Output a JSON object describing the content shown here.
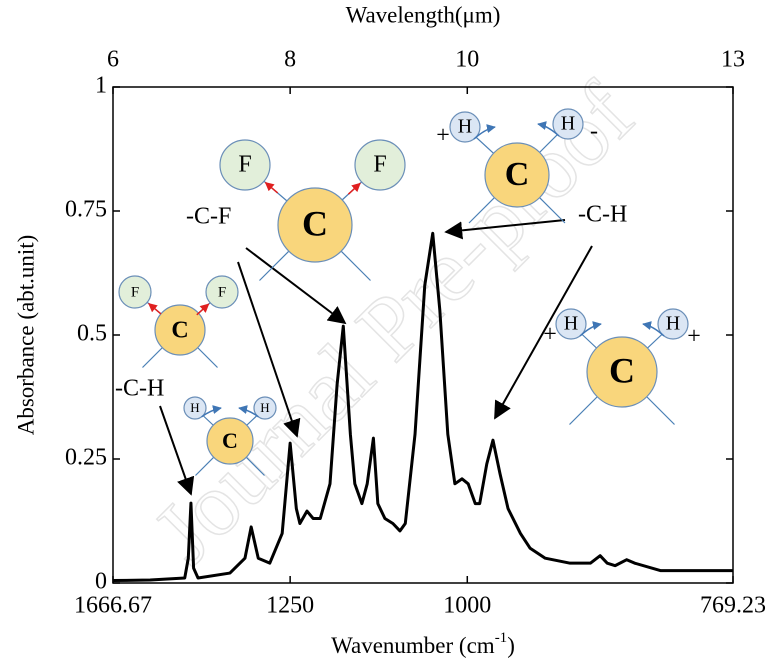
{
  "chart_data": {
    "type": "line",
    "xlabel": "Wavelength(μm)",
    "ylabel": "Absorbance (abt.unit)",
    "x2label": {
      "text": "Wavenumber (cm",
      "sup": "-1",
      "end": ")"
    },
    "xlim": [
      6,
      13
    ],
    "xticks": [
      6,
      8,
      10,
      13
    ],
    "x2lim": [
      1666.67,
      769.23
    ],
    "x2ticks": [
      1666.67,
      1250,
      1000,
      769.23
    ],
    "x2_scale": "reciprocal",
    "ylim": [
      0,
      1
    ],
    "yticks": [
      0,
      0.25,
      0.5,
      0.75,
      1
    ],
    "series": [
      {
        "name": "Absorbance",
        "color": "#000000",
        "x": [
          6.0,
          6.42,
          6.81,
          6.85,
          6.88,
          6.91,
          6.96,
          7.32,
          7.49,
          7.56,
          7.64,
          7.77,
          7.91,
          8.0,
          8.07,
          8.11,
          8.19,
          8.26,
          8.34,
          8.45,
          8.53,
          8.6,
          8.68,
          8.73,
          8.81,
          8.87,
          8.94,
          8.99,
          9.07,
          9.16,
          9.24,
          9.3,
          9.41,
          9.52,
          9.61,
          9.69,
          9.78,
          9.86,
          9.94,
          10.01,
          10.09,
          10.14,
          10.22,
          10.29,
          10.37,
          10.46,
          10.6,
          10.71,
          10.88,
          11.16,
          11.39,
          11.5,
          11.58,
          11.67,
          11.8,
          11.89,
          12.18,
          12.63,
          13.0
        ],
        "values": [
          0.005,
          0.006,
          0.01,
          0.05,
          0.161,
          0.03,
          0.01,
          0.02,
          0.05,
          0.113,
          0.05,
          0.04,
          0.1,
          0.282,
          0.15,
          0.12,
          0.145,
          0.13,
          0.13,
          0.2,
          0.4,
          0.518,
          0.3,
          0.2,
          0.16,
          0.2,
          0.292,
          0.16,
          0.13,
          0.12,
          0.105,
          0.12,
          0.3,
          0.6,
          0.705,
          0.55,
          0.3,
          0.2,
          0.21,
          0.2,
          0.16,
          0.16,
          0.24,
          0.288,
          0.22,
          0.15,
          0.1,
          0.07,
          0.05,
          0.04,
          0.04,
          0.055,
          0.04,
          0.035,
          0.047,
          0.04,
          0.025,
          0.025,
          0.025
        ]
      }
    ],
    "annotations": [
      "-C-F",
      "-C-H",
      "-C-H"
    ],
    "diagrams": [
      {
        "center": "C",
        "atoms": [
          "F",
          "F"
        ]
      },
      {
        "center": "C",
        "atoms": [
          "F",
          "F"
        ]
      },
      {
        "center": "C",
        "atoms": [
          "H",
          "H"
        ]
      },
      {
        "center": "C",
        "atoms": [
          "H",
          "H"
        ],
        "signs": [
          "+",
          "-"
        ]
      },
      {
        "center": "C",
        "atoms": [
          "H",
          "H"
        ],
        "signs": [
          "+",
          "+"
        ]
      }
    ],
    "watermark": "Journal Pre-proof"
  }
}
